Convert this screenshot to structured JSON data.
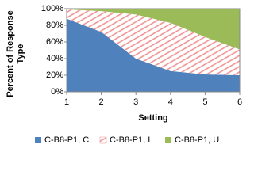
{
  "chart_data": {
    "type": "area",
    "x": [
      1,
      2,
      3,
      4,
      5,
      6
    ],
    "series": [
      {
        "name": "C-B8-P1, C",
        "color": "#4f81bd",
        "values": [
          88,
          72,
          40,
          25,
          21,
          20
        ]
      },
      {
        "name": "C-B8-P1, I",
        "color": "#f08c8c",
        "values": [
          11,
          25,
          53,
          58,
          45,
          31
        ]
      },
      {
        "name": "C-B8-P1, U",
        "color": "#9bbb59",
        "values": [
          1,
          3,
          7,
          17,
          34,
          49
        ]
      }
    ],
    "stacked": true,
    "xlabel": "Setting",
    "ylabel": "Percent of Response Type",
    "xlim": [
      1,
      6
    ],
    "xticks": [
      1,
      2,
      3,
      4,
      5,
      6
    ],
    "ylim": [
      0,
      100
    ],
    "yticks": [
      {
        "value": 0,
        "label": "0%"
      },
      {
        "value": 20,
        "label": "20%"
      },
      {
        "value": 40,
        "label": "40%"
      },
      {
        "value": 60,
        "label": "60%"
      },
      {
        "value": 80,
        "label": "80%"
      },
      {
        "value": 100,
        "label": "100%"
      }
    ],
    "grid": false,
    "legend": "bottom"
  }
}
